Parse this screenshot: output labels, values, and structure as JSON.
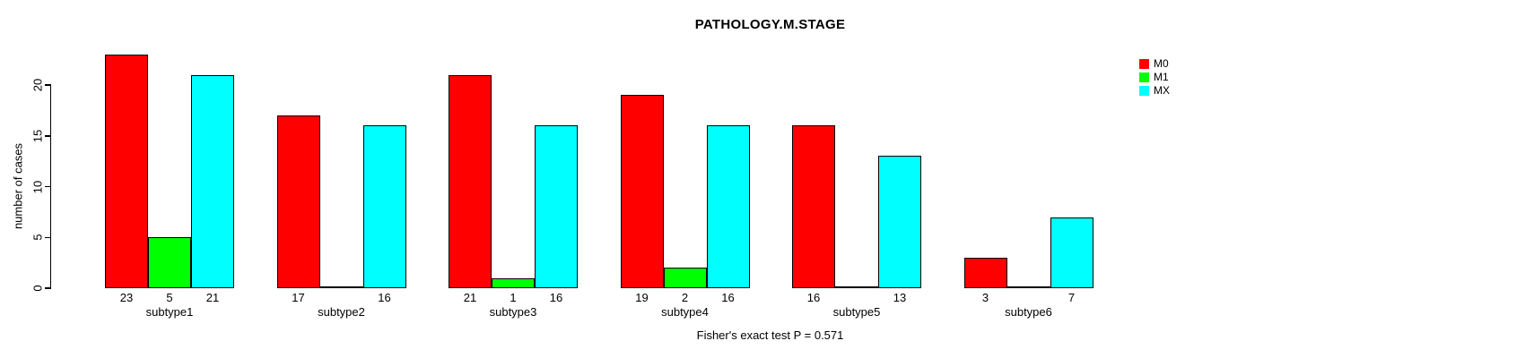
{
  "chart_data": {
    "type": "bar",
    "title": "PATHOLOGY.M.STAGE",
    "ylabel": "number of cases",
    "footer": "Fisher's exact test P = 0.571",
    "categories": [
      "subtype1",
      "subtype2",
      "subtype3",
      "subtype4",
      "subtype5",
      "subtype6"
    ],
    "series": [
      {
        "name": "M0",
        "color": "#FF0000",
        "values": [
          23,
          17,
          21,
          19,
          16,
          3
        ]
      },
      {
        "name": "M1",
        "color": "#00FF00",
        "values": [
          5,
          0,
          1,
          2,
          0,
          0
        ]
      },
      {
        "name": "MX",
        "color": "#00FFFF",
        "values": [
          21,
          16,
          16,
          16,
          13,
          7
        ]
      }
    ],
    "yticks": [
      0,
      5,
      10,
      15,
      20
    ],
    "ylim": [
      0,
      23
    ],
    "grid": false,
    "legend_position": "right-inside",
    "bar_value_labels_shown": true,
    "zero_bars_drawn_as_baseline_segment": true
  }
}
